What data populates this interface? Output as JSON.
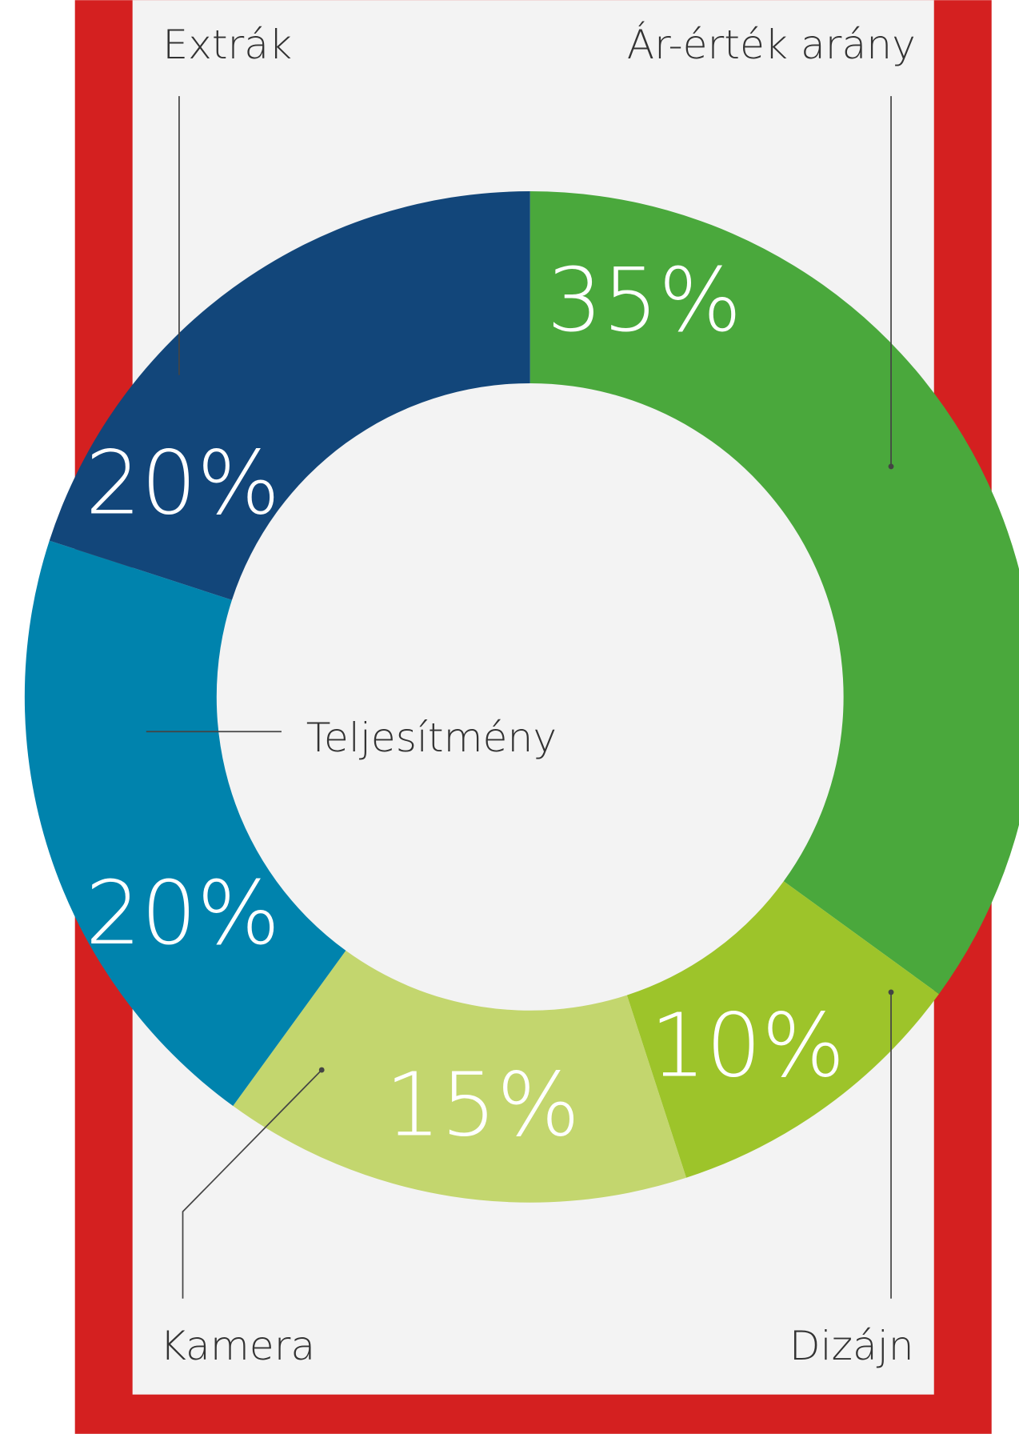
{
  "chart_data": {
    "type": "pie",
    "donut": true,
    "categories": [
      "Ár-érték arány",
      "Dizájn",
      "Kamera",
      "Teljesítmény",
      "Extrák"
    ],
    "values": [
      35,
      10,
      15,
      20,
      20
    ],
    "value_labels": [
      "35%",
      "10%",
      "15%",
      "20%",
      "20%"
    ],
    "colors": [
      "#4aa83c",
      "#9dc42a",
      "#c3d66e",
      "#0083ad",
      "#12467a"
    ]
  }
}
